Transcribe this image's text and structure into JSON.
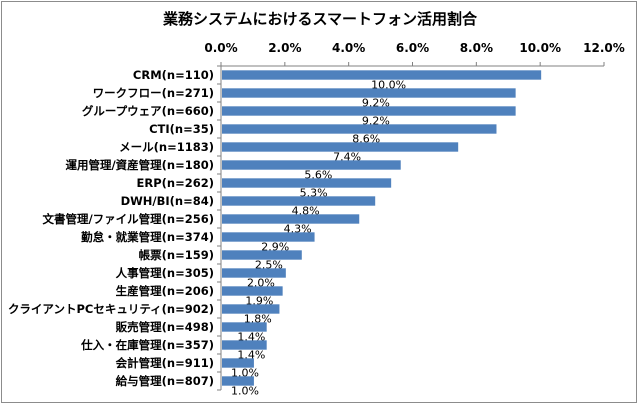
{
  "chart_data": {
    "type": "bar",
    "orientation": "horizontal",
    "title": "業務システムにおけるスマートフォン活用割合",
    "categories": [
      "CRM(n=110)",
      "ワークフロー(n=271)",
      "グループウェア(n=660)",
      "CTI(n=35)",
      "メール(n=1183)",
      "運用管理/資産管理(n=180)",
      "ERP(n=262)",
      "DWH/BI(n=84)",
      "文書管理/ファイル管理(n=256)",
      "勤怠・就業管理(n=374)",
      "帳票(n=159)",
      "人事管理(n=305)",
      "生産管理(n=206)",
      "クライアントPCセキュリティ(n=902)",
      "販売管理(n=498)",
      "仕入・在庫管理(n=357)",
      "会計管理(n=911)",
      "給与管理(n=807)"
    ],
    "values": [
      10.0,
      9.2,
      9.2,
      8.6,
      7.4,
      5.6,
      5.3,
      4.8,
      4.3,
      2.9,
      2.5,
      2.0,
      1.9,
      1.8,
      1.4,
      1.4,
      1.0,
      1.0
    ],
    "data_labels": [
      "10.0%",
      "9.2%",
      "9.2%",
      "8.6%",
      "7.4%",
      "5.6%",
      "5.3%",
      "4.8%",
      "4.3%",
      "2.9%",
      "2.5%",
      "2.0%",
      "1.9%",
      "1.8%",
      "1.4%",
      "1.4%",
      "1.0%",
      "1.0%"
    ],
    "xlim": [
      0,
      12
    ],
    "x_ticks": [
      "0.0%",
      "2.0%",
      "4.0%",
      "6.0%",
      "8.0%",
      "10.0%",
      "12.0%"
    ],
    "x_axis_position": "top",
    "grid": false,
    "legend": "none",
    "bar_color": "#4f81bd"
  }
}
